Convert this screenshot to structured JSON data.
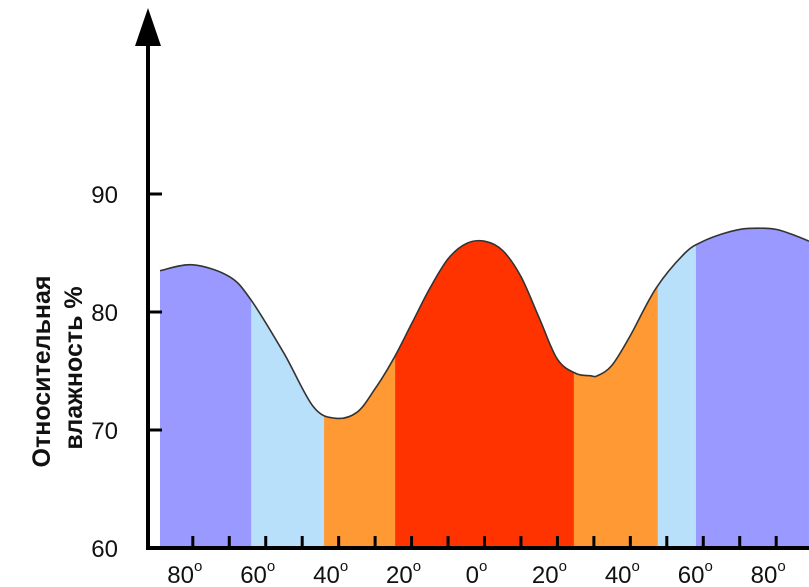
{
  "chart_data": {
    "type": "area",
    "title": "",
    "xlabel": "",
    "ylabel_lines": [
      "Относительная",
      "влажность %"
    ],
    "ylim": [
      60,
      90
    ],
    "y_ticks": [
      {
        "value": 60,
        "label": "60"
      },
      {
        "value": 70,
        "label": "70"
      },
      {
        "value": 80,
        "label": "80"
      },
      {
        "value": 90,
        "label": "90"
      }
    ],
    "x_ticks": [
      {
        "value": -80,
        "label": "80"
      },
      {
        "value": -60,
        "label": "60"
      },
      {
        "value": -40,
        "label": "40"
      },
      {
        "value": -20,
        "label": "20"
      },
      {
        "value": 0,
        "label": "0"
      },
      {
        "value": 20,
        "label": "20"
      },
      {
        "value": 40,
        "label": "40"
      },
      {
        "value": 60,
        "label": "60"
      },
      {
        "value": 80,
        "label": "80"
      }
    ],
    "degree_symbol": "o",
    "x_minor_ticks": [
      -70,
      -50,
      -30,
      -10,
      10,
      30,
      50,
      70
    ],
    "x_range": [
      -89,
      89
    ],
    "series": [
      {
        "x": [
          -89,
          -80,
          -70,
          -64,
          -55,
          -47,
          -41,
          -35,
          -30,
          -25,
          -20,
          -15,
          -10,
          -5,
          0,
          5,
          10,
          15,
          20,
          25,
          29,
          31,
          35,
          40,
          47,
          55,
          60,
          65,
          70,
          75,
          80,
          85,
          89
        ],
        "values": [
          83.5,
          84.0,
          83.0,
          81.0,
          76.5,
          72.0,
          71.0,
          71.5,
          73.5,
          76.0,
          79.0,
          82.0,
          84.5,
          85.8,
          86.0,
          85.2,
          83.0,
          79.5,
          76.0,
          74.8,
          74.6,
          74.6,
          75.5,
          78.0,
          82.0,
          85.0,
          86.0,
          86.6,
          87.0,
          87.1,
          87.0,
          86.5,
          86.0
        ]
      }
    ],
    "bands": [
      {
        "from": -89,
        "to": -64,
        "color": "#9999ff"
      },
      {
        "from": -64,
        "to": -44,
        "color": "#b8e0fa"
      },
      {
        "from": -44,
        "to": -24.5,
        "color": "#ff9933"
      },
      {
        "from": -24.5,
        "to": 24.5,
        "color": "#ff3300"
      },
      {
        "from": 24.5,
        "to": 47.5,
        "color": "#ff9933"
      },
      {
        "from": 47.5,
        "to": 58,
        "color": "#b8e0fa"
      },
      {
        "from": 58,
        "to": 89,
        "color": "#9999ff"
      }
    ],
    "axis_color": "#000000",
    "curve_color": "#333333"
  }
}
